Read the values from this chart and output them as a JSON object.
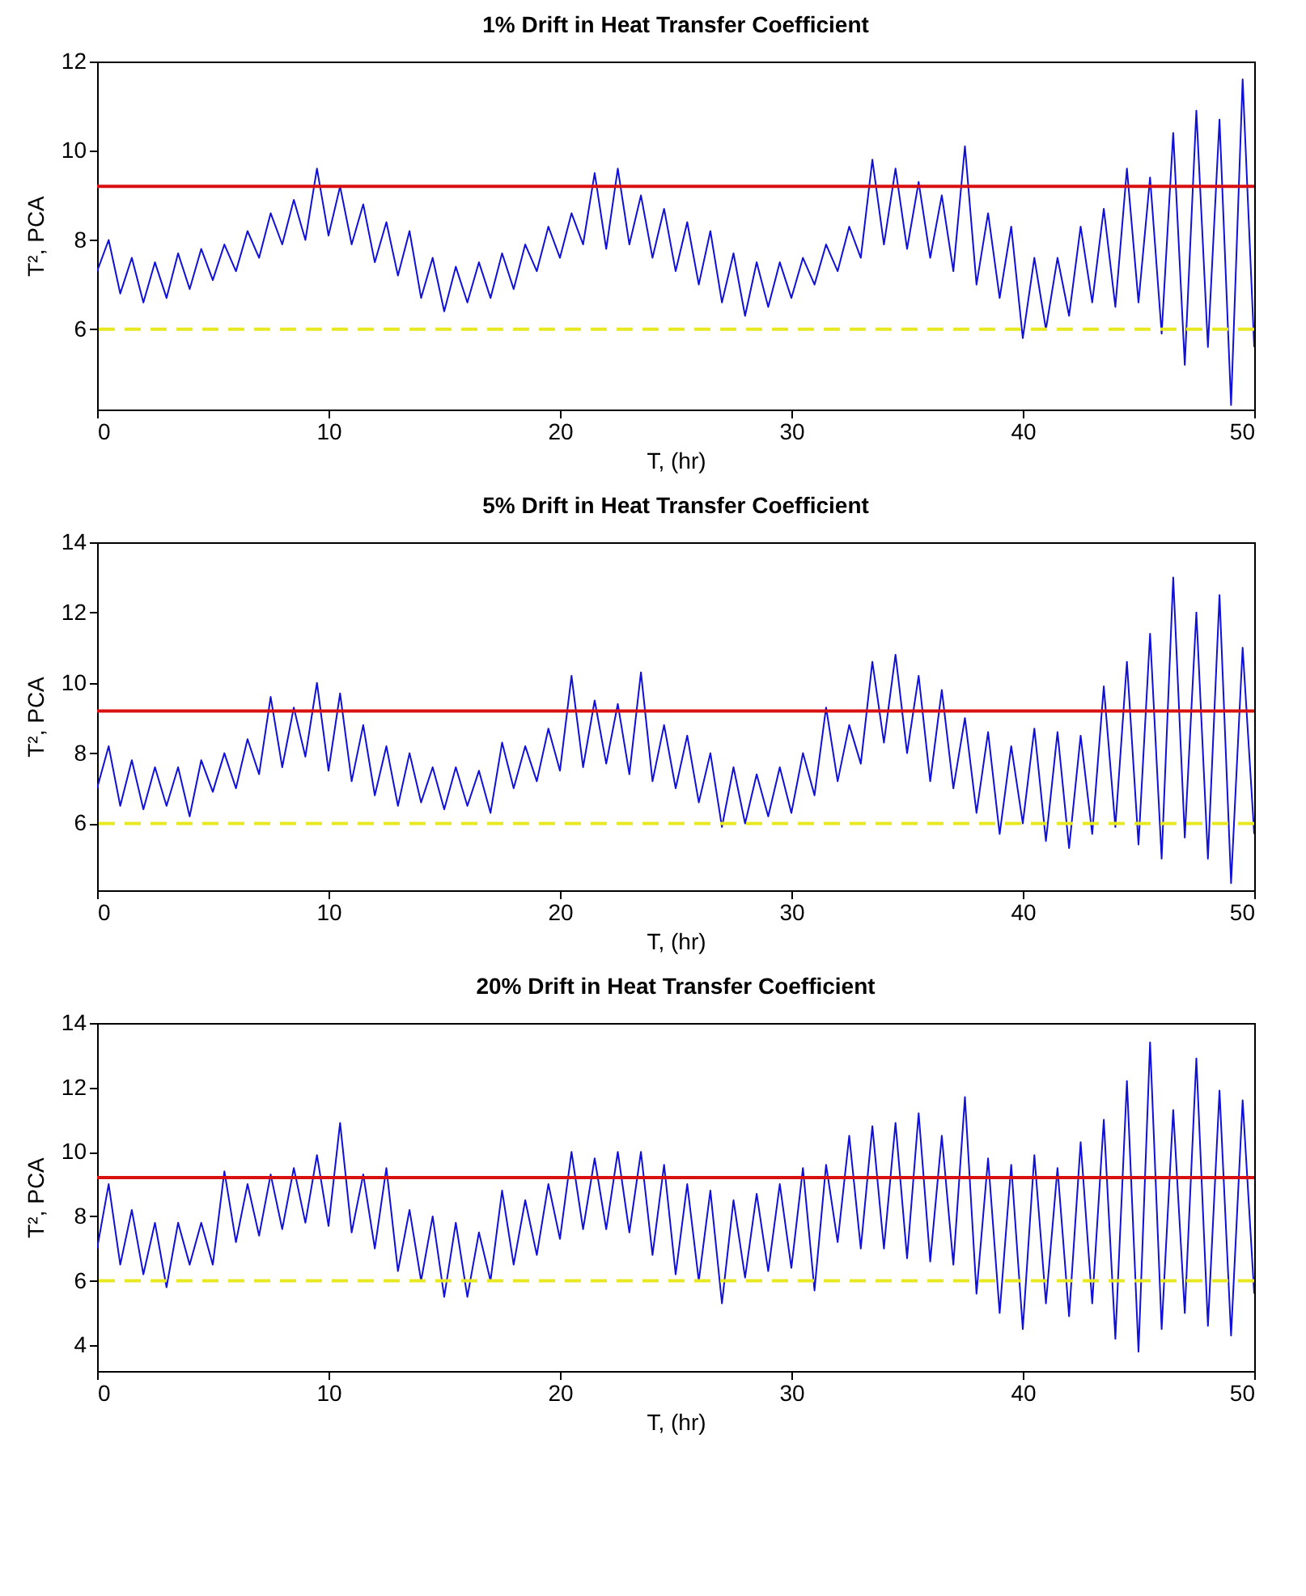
{
  "chart_data": [
    {
      "type": "line",
      "title": "1% Drift in Heat Transfer Coefficient",
      "xlabel": "T, (hr)",
      "ylabel": "T², PCA",
      "xlim": [
        0,
        50
      ],
      "xticks": [
        0,
        10,
        20,
        30,
        40,
        50
      ],
      "ylim": [
        4.2,
        12
      ],
      "yticks": [
        6,
        8,
        10,
        12
      ],
      "grid": false,
      "x": [
        0,
        0.5,
        1,
        1.5,
        2,
        2.5,
        3,
        3.5,
        4,
        4.5,
        5,
        5.5,
        6,
        6.5,
        7,
        7.5,
        8,
        8.5,
        9,
        9.5,
        10,
        10.5,
        11,
        11.5,
        12,
        12.5,
        13,
        13.5,
        14,
        14.5,
        15,
        15.5,
        16,
        16.5,
        17,
        17.5,
        18,
        18.5,
        19,
        19.5,
        20,
        20.5,
        21,
        21.5,
        22,
        22.5,
        23,
        23.5,
        24,
        24.5,
        25,
        25.5,
        26,
        26.5,
        27,
        27.5,
        28,
        28.5,
        29,
        29.5,
        30,
        30.5,
        31,
        31.5,
        32,
        32.5,
        33,
        33.5,
        34,
        34.5,
        35,
        35.5,
        36,
        36.5,
        37,
        37.5,
        38,
        38.5,
        39,
        39.5,
        40,
        40.5,
        41,
        41.5,
        42,
        42.5,
        43,
        43.5,
        44,
        44.5,
        45,
        45.5,
        46,
        46.5,
        47,
        47.5,
        48,
        48.5,
        49,
        49.5,
        50
      ],
      "series": [
        {
          "color": "#1010d8",
          "values": [
            7.3,
            8.0,
            6.8,
            7.6,
            6.6,
            7.5,
            6.7,
            7.7,
            6.9,
            7.8,
            7.1,
            7.9,
            7.3,
            8.2,
            7.6,
            8.6,
            7.9,
            8.9,
            8.0,
            9.6,
            8.1,
            9.2,
            7.9,
            8.8,
            7.5,
            8.4,
            7.2,
            8.2,
            6.7,
            7.6,
            6.4,
            7.4,
            6.6,
            7.5,
            6.7,
            7.7,
            6.9,
            7.9,
            7.3,
            8.3,
            7.6,
            8.6,
            7.9,
            9.5,
            7.8,
            9.6,
            7.9,
            9.0,
            7.6,
            8.7,
            7.3,
            8.4,
            7.0,
            8.2,
            6.6,
            7.7,
            6.3,
            7.5,
            6.5,
            7.5,
            6.7,
            7.6,
            7.0,
            7.9,
            7.3,
            8.3,
            7.6,
            9.8,
            7.9,
            9.6,
            7.8,
            9.3,
            7.6,
            9.0,
            7.3,
            10.1,
            7.0,
            8.6,
            6.7,
            8.3,
            5.8,
            7.6,
            6.0,
            7.6,
            6.3,
            8.3,
            6.6,
            8.7,
            6.5,
            9.6,
            6.6,
            9.4,
            5.9,
            10.4,
            5.2,
            10.9,
            5.6,
            10.7,
            4.3,
            11.6,
            5.6
          ]
        }
      ],
      "ref_lines": [
        {
          "axis": "y",
          "value": 9.2,
          "color": "#d81010",
          "line_style": "solid"
        },
        {
          "axis": "y",
          "value": 6,
          "color": "#e8e820",
          "line_style": "dashed"
        }
      ]
    },
    {
      "type": "line",
      "title": "5% Drift in Heat Transfer Coefficient",
      "xlabel": "T, (hr)",
      "ylabel": "T², PCA",
      "xlim": [
        0,
        50
      ],
      "xticks": [
        0,
        10,
        20,
        30,
        40,
        50
      ],
      "ylim": [
        4.1,
        14
      ],
      "yticks": [
        6,
        8,
        10,
        12,
        14
      ],
      "grid": false,
      "x": [
        0,
        0.5,
        1,
        1.5,
        2,
        2.5,
        3,
        3.5,
        4,
        4.5,
        5,
        5.5,
        6,
        6.5,
        7,
        7.5,
        8,
        8.5,
        9,
        9.5,
        10,
        10.5,
        11,
        11.5,
        12,
        12.5,
        13,
        13.5,
        14,
        14.5,
        15,
        15.5,
        16,
        16.5,
        17,
        17.5,
        18,
        18.5,
        19,
        19.5,
        20,
        20.5,
        21,
        21.5,
        22,
        22.5,
        23,
        23.5,
        24,
        24.5,
        25,
        25.5,
        26,
        26.5,
        27,
        27.5,
        28,
        28.5,
        29,
        29.5,
        30,
        30.5,
        31,
        31.5,
        32,
        32.5,
        33,
        33.5,
        34,
        34.5,
        35,
        35.5,
        36,
        36.5,
        37,
        37.5,
        38,
        38.5,
        39,
        39.5,
        40,
        40.5,
        41,
        41.5,
        42,
        42.5,
        43,
        43.5,
        44,
        44.5,
        45,
        45.5,
        46,
        46.5,
        47,
        47.5,
        48,
        48.5,
        49,
        49.5,
        50
      ],
      "series": [
        {
          "color": "#1010d8",
          "values": [
            7.0,
            8.2,
            6.5,
            7.8,
            6.4,
            7.6,
            6.5,
            7.6,
            6.2,
            7.8,
            6.9,
            8.0,
            7.0,
            8.4,
            7.4,
            9.6,
            7.6,
            9.3,
            7.9,
            10.0,
            7.5,
            9.7,
            7.2,
            8.8,
            6.8,
            8.2,
            6.5,
            8.0,
            6.6,
            7.6,
            6.4,
            7.6,
            6.5,
            7.5,
            6.3,
            8.3,
            7.0,
            8.2,
            7.2,
            8.7,
            7.5,
            10.2,
            7.6,
            9.5,
            7.7,
            9.4,
            7.4,
            10.3,
            7.2,
            8.8,
            7.0,
            8.5,
            6.6,
            8.0,
            5.9,
            7.6,
            6.0,
            7.4,
            6.2,
            7.6,
            6.3,
            8.0,
            6.8,
            9.3,
            7.2,
            8.8,
            7.7,
            10.6,
            8.3,
            10.8,
            8.0,
            10.2,
            7.2,
            9.8,
            7.0,
            9.0,
            6.3,
            8.6,
            5.7,
            8.2,
            6.0,
            8.7,
            5.5,
            8.6,
            5.3,
            8.5,
            5.7,
            9.9,
            5.9,
            10.6,
            5.4,
            11.4,
            5.0,
            13.0,
            5.6,
            12.0,
            5.0,
            12.5,
            4.3,
            11.0,
            5.7
          ]
        }
      ],
      "ref_lines": [
        {
          "axis": "y",
          "value": 9.2,
          "color": "#d81010",
          "line_style": "solid"
        },
        {
          "axis": "y",
          "value": 6,
          "color": "#e8e820",
          "line_style": "dashed"
        }
      ]
    },
    {
      "type": "line",
      "title": "20% Drift in Heat Transfer Coefficient",
      "xlabel": "T, (hr)",
      "ylabel": "T², PCA",
      "xlim": [
        0,
        50
      ],
      "xticks": [
        0,
        10,
        20,
        30,
        40,
        50
      ],
      "ylim": [
        3.2,
        14
      ],
      "yticks": [
        4,
        6,
        8,
        10,
        12,
        14
      ],
      "grid": false,
      "x": [
        0,
        0.5,
        1,
        1.5,
        2,
        2.5,
        3,
        3.5,
        4,
        4.5,
        5,
        5.5,
        6,
        6.5,
        7,
        7.5,
        8,
        8.5,
        9,
        9.5,
        10,
        10.5,
        11,
        11.5,
        12,
        12.5,
        13,
        13.5,
        14,
        14.5,
        15,
        15.5,
        16,
        16.5,
        17,
        17.5,
        18,
        18.5,
        19,
        19.5,
        20,
        20.5,
        21,
        21.5,
        22,
        22.5,
        23,
        23.5,
        24,
        24.5,
        25,
        25.5,
        26,
        26.5,
        27,
        27.5,
        28,
        28.5,
        29,
        29.5,
        30,
        30.5,
        31,
        31.5,
        32,
        32.5,
        33,
        33.5,
        34,
        34.5,
        35,
        35.5,
        36,
        36.5,
        37,
        37.5,
        38,
        38.5,
        39,
        39.5,
        40,
        40.5,
        41,
        41.5,
        42,
        42.5,
        43,
        43.5,
        44,
        44.5,
        45,
        45.5,
        46,
        46.5,
        47,
        47.5,
        48,
        48.5,
        49,
        49.5,
        50
      ],
      "series": [
        {
          "color": "#1010d8",
          "values": [
            7.0,
            9.0,
            6.5,
            8.2,
            6.2,
            7.8,
            5.8,
            7.8,
            6.5,
            7.8,
            6.5,
            9.4,
            7.2,
            9.0,
            7.4,
            9.3,
            7.6,
            9.5,
            7.8,
            9.9,
            7.7,
            10.9,
            7.5,
            9.3,
            7.0,
            9.5,
            6.3,
            8.2,
            6.0,
            8.0,
            5.5,
            7.8,
            5.5,
            7.5,
            6.0,
            8.8,
            6.5,
            8.5,
            6.8,
            9.0,
            7.3,
            10.0,
            7.6,
            9.8,
            7.6,
            10.0,
            7.5,
            10.0,
            6.8,
            9.6,
            6.2,
            9.0,
            6.0,
            8.8,
            5.3,
            8.5,
            6.1,
            8.7,
            6.3,
            9.0,
            6.4,
            9.5,
            5.7,
            9.6,
            7.2,
            10.5,
            7.0,
            10.8,
            7.0,
            10.9,
            6.7,
            11.2,
            6.6,
            10.5,
            6.5,
            11.7,
            5.6,
            9.8,
            5.0,
            9.6,
            4.5,
            9.9,
            5.3,
            9.5,
            4.9,
            10.3,
            5.3,
            11.0,
            4.2,
            12.2,
            3.8,
            13.4,
            4.5,
            11.3,
            5.0,
            12.9,
            4.6,
            11.9,
            4.3,
            11.6,
            5.6
          ]
        }
      ],
      "ref_lines": [
        {
          "axis": "y",
          "value": 9.2,
          "color": "#d81010",
          "line_style": "solid"
        },
        {
          "axis": "y",
          "value": 6,
          "color": "#e8e820",
          "line_style": "dashed"
        }
      ]
    }
  ]
}
